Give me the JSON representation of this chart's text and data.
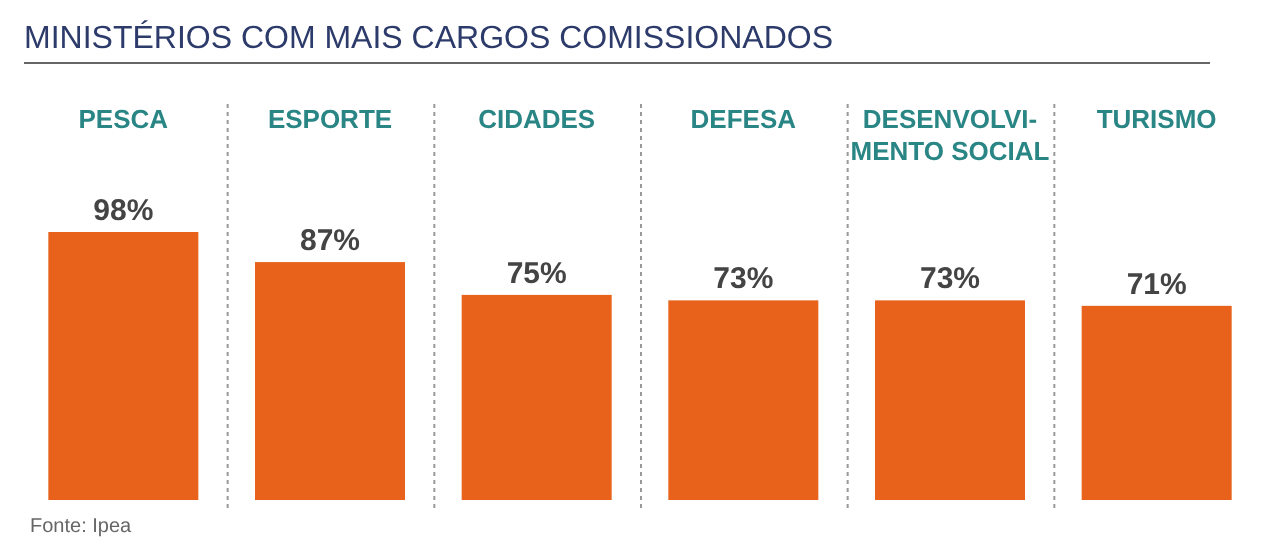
{
  "chart_data": {
    "type": "bar",
    "title": "MINISTÉRIOS COM MAIS CARGOS COMISSIONADOS",
    "categories": [
      "PESCA",
      "ESPORTE",
      "CIDADES",
      "DEFESA",
      "DESENVOLVI-\nMENTO SOCIAL",
      "TURISMO"
    ],
    "values": [
      98,
      87,
      75,
      73,
      73,
      71
    ],
    "value_labels": [
      "98%",
      "87%",
      "75%",
      "73%",
      "73%",
      "71%"
    ],
    "color": "#e8621c",
    "annotations": [
      "Fonte: Ipea"
    ]
  }
}
